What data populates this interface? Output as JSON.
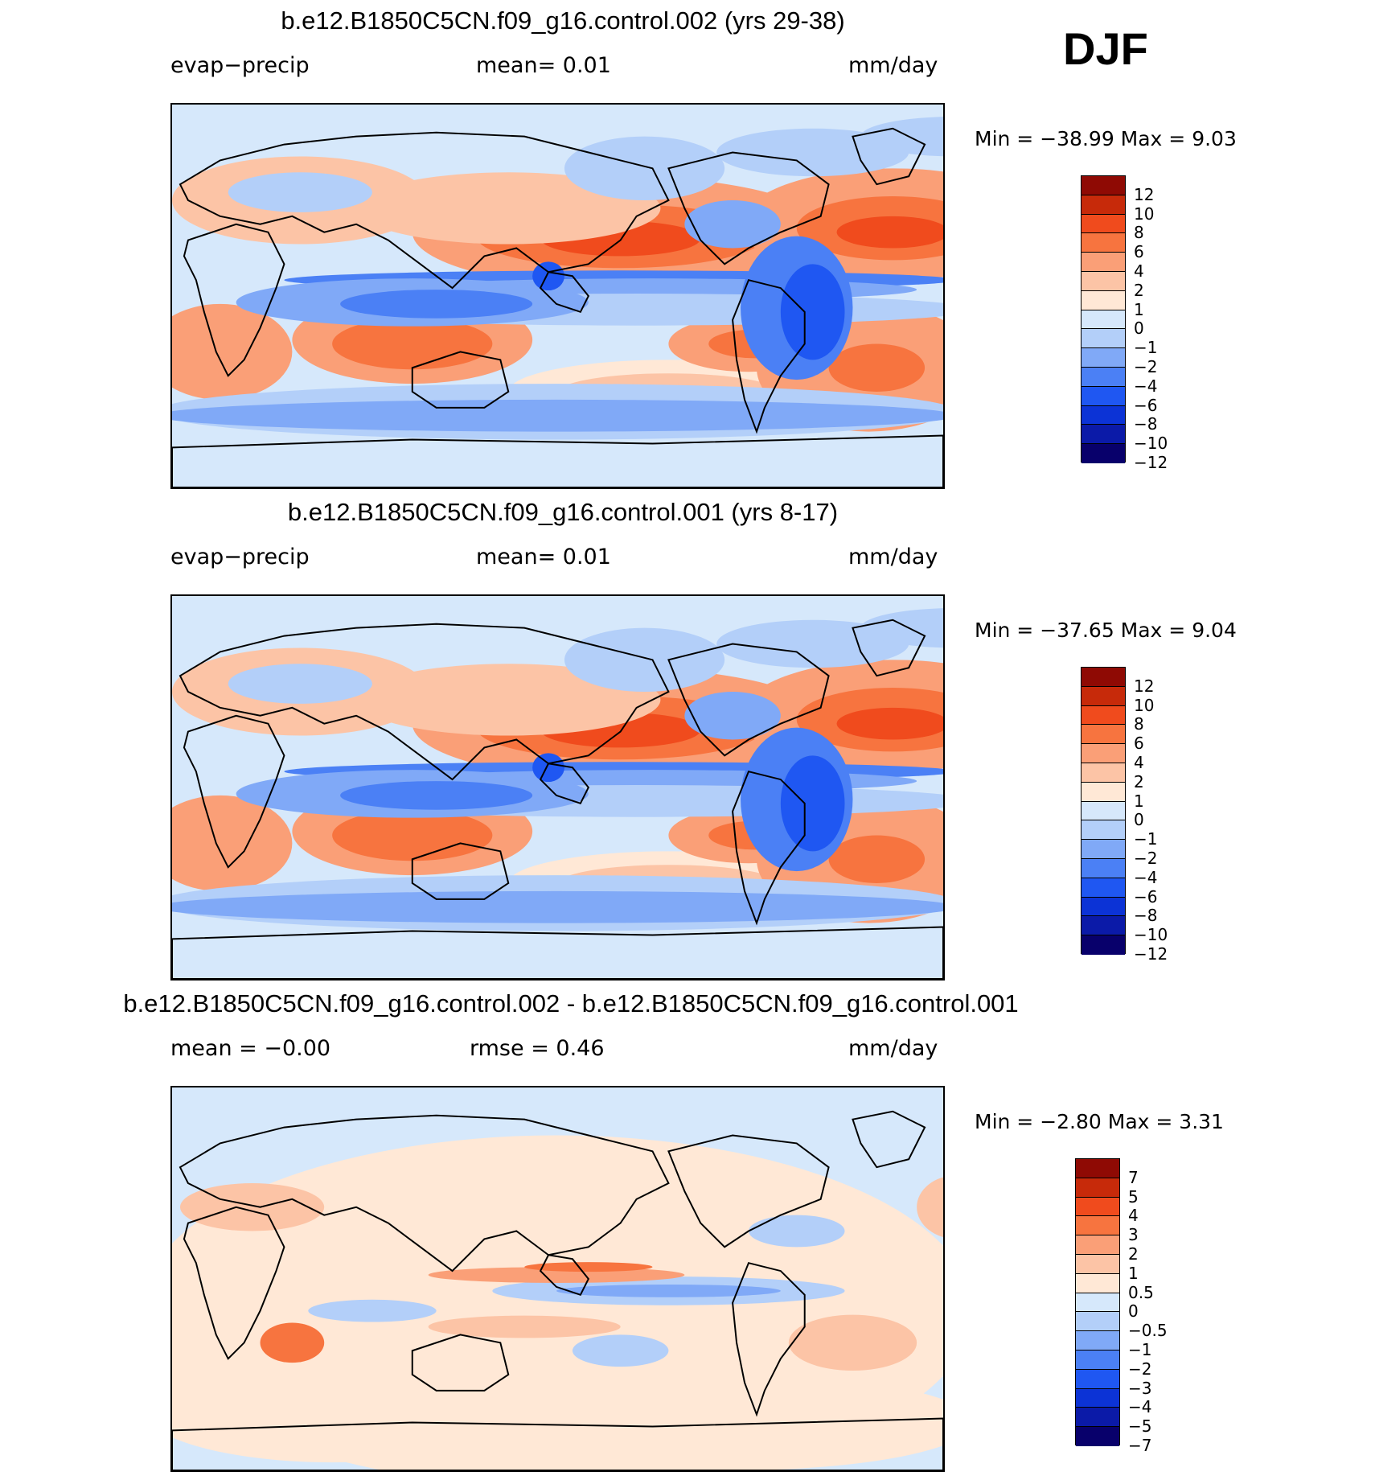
{
  "season": "DJF",
  "colors": {
    "main_scale": [
      "#08006b",
      "#0b1aa8",
      "#0c33d6",
      "#1f57f2",
      "#4b80f5",
      "#80a9f7",
      "#b3cff9",
      "#d6e8fb",
      "#ffe8d6",
      "#fcc4a6",
      "#fa9f77",
      "#f7743f",
      "#f04b1d",
      "#c72a0a",
      "#8f0a04"
    ],
    "diff_scale": [
      "#08006b",
      "#0b1aa8",
      "#0c33d6",
      "#1f57f2",
      "#4b80f5",
      "#80a9f7",
      "#b3cff9",
      "#d6e8fb",
      "#ffe8d6",
      "#fcc4a6",
      "#fa9f77",
      "#f7743f",
      "#f04b1d",
      "#c72a0a",
      "#8f0a04"
    ],
    "land": "#d6e8fb",
    "coast": "#000000"
  },
  "panels": [
    {
      "title": "b.e12.B1850C5CN.f09_g16.control.002 (yrs 29-38)",
      "left_label": "evap−precip",
      "mid_label": "mean=    0.01",
      "right_label": "mm/day",
      "minmax": "Min  =  −38.99  Max  =      9.03",
      "colorbar_ticks": [
        "12",
        "10",
        "8",
        "6",
        "4",
        "2",
        "1",
        "0",
        "−1",
        "−2",
        "−4",
        "−6",
        "−8",
        "−10",
        "−12"
      ]
    },
    {
      "title": "b.e12.B1850C5CN.f09_g16.control.001 (yrs 8-17)",
      "left_label": "evap−precip",
      "mid_label": "mean=    0.01",
      "right_label": "mm/day",
      "minmax": "Min  =  −37.65  Max  =      9.04",
      "colorbar_ticks": [
        "12",
        "10",
        "8",
        "6",
        "4",
        "2",
        "1",
        "0",
        "−1",
        "−2",
        "−4",
        "−6",
        "−8",
        "−10",
        "−12"
      ]
    },
    {
      "title": "b.e12.B1850C5CN.f09_g16.control.002 - b.e12.B1850C5CN.f09_g16.control.001",
      "left_label": "mean  =    −0.00",
      "mid_label": "rmse  =     0.46",
      "right_label": "mm/day",
      "minmax": "Min  =    −2.80  Max  =     3.31",
      "colorbar_ticks": [
        "7",
        "5",
        "4",
        "3",
        "2",
        "1",
        "0.5",
        "0",
        "−0.5",
        "−1",
        "−2",
        "−3",
        "−4",
        "−5",
        "−7"
      ]
    }
  ]
}
